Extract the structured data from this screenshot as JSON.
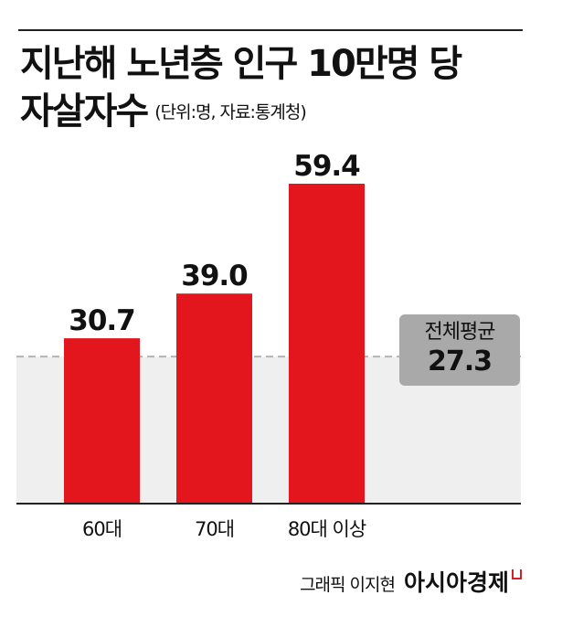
{
  "chart_data": {
    "type": "bar",
    "title": "지난해 노년층 인구 10만명 당 자살자수",
    "title_lines": [
      "지난해 노년층 인구 10만명 당",
      "자살자수"
    ],
    "subtitle": "(단위:명, 자료:통계청)",
    "categories": [
      "60대",
      "70대",
      "80대 이상"
    ],
    "values": [
      30.7,
      39.0,
      59.4
    ],
    "value_labels": [
      "30.7",
      "39.0",
      "59.4"
    ],
    "ylim": [
      0,
      68
    ],
    "average": {
      "label": "전체평균",
      "value": 27.3,
      "value_label": "27.3"
    },
    "grid": false,
    "bar_color": "#e3151d",
    "average_band_color": "#efefef",
    "average_line_color": "#b3b3b3"
  },
  "credit": {
    "text": "그래픽 이지현",
    "brand": "아시아경제"
  }
}
